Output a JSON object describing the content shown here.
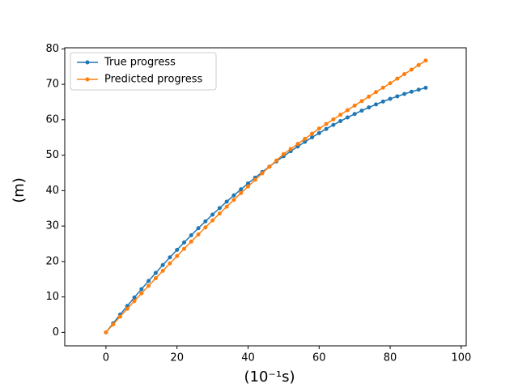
{
  "chart_data": {
    "type": "line",
    "xlabel": "(10⁻¹s)",
    "ylabel": "(m)",
    "x": [
      0,
      2,
      4,
      6,
      8,
      10,
      12,
      14,
      16,
      18,
      20,
      22,
      24,
      26,
      28,
      30,
      32,
      34,
      36,
      38,
      40,
      42,
      44,
      46,
      48,
      50,
      52,
      54,
      56,
      58,
      60,
      62,
      64,
      66,
      68,
      70,
      72,
      74,
      76,
      78,
      80,
      82,
      84,
      86,
      88,
      90
    ],
    "series": [
      {
        "name": "True progress",
        "color": "#1f77b4",
        "values": [
          0,
          2.53,
          5.02,
          7.46,
          9.86,
          12.21,
          14.52,
          16.78,
          18.99,
          21.16,
          23.29,
          25.37,
          27.4,
          29.39,
          31.33,
          33.23,
          35.08,
          36.89,
          38.65,
          40.36,
          42.03,
          43.66,
          45.24,
          46.77,
          48.26,
          49.7,
          51.1,
          52.45,
          53.76,
          55.02,
          56.23,
          57.4,
          58.53,
          59.61,
          60.64,
          61.63,
          62.57,
          63.47,
          64.32,
          65.13,
          65.89,
          66.6,
          67.27,
          67.9,
          68.48,
          69.01
        ]
      },
      {
        "name": "Predicted progress",
        "color": "#ff7f0e",
        "values": [
          0,
          2.24,
          4.46,
          6.66,
          8.84,
          11,
          13.14,
          15.27,
          17.37,
          19.46,
          21.53,
          23.58,
          25.61,
          27.62,
          29.62,
          31.59,
          33.55,
          35.48,
          37.4,
          39.3,
          41.18,
          43.04,
          44.88,
          46.71,
          48.51,
          50.3,
          51.74,
          53.18,
          54.62,
          56.06,
          57.5,
          58.8,
          60.1,
          61.4,
          62.7,
          64,
          65.26,
          66.52,
          67.78,
          69.04,
          70.3,
          71.58,
          72.86,
          74.14,
          75.42,
          76.7
        ]
      }
    ],
    "xlim": [
      -11.6,
      101.4
    ],
    "xticks": [
      0,
      20,
      40,
      60,
      80,
      100
    ],
    "ylim": [
      -3.8,
      80.3
    ],
    "yticks": [
      0,
      10,
      20,
      30,
      40,
      50,
      60,
      70,
      80
    ],
    "legend": "upper left"
  }
}
